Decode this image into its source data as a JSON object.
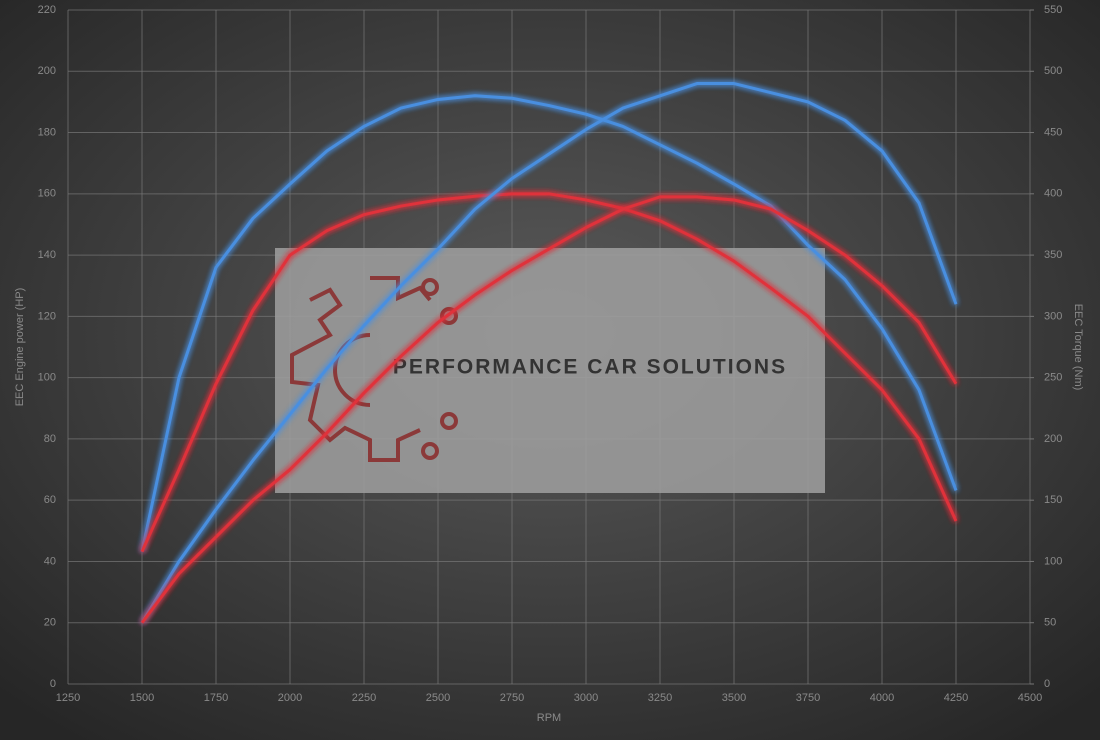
{
  "chart_data": {
    "type": "line",
    "watermark": "PERFORMANCE CAR SOLUTIONS",
    "x_label": "RPM",
    "y_label": "EEC Engine power (HP)",
    "y2_label": "EEC Torque (Nm)",
    "x": [
      1500,
      1625,
      1750,
      1875,
      2000,
      2125,
      2250,
      2375,
      2500,
      2625,
      2750,
      2875,
      3000,
      3125,
      3250,
      3375,
      3500,
      3625,
      3750,
      3875,
      4000,
      4125,
      4250
    ],
    "series": [
      {
        "color": "#4a8fe0",
        "axis": "y2",
        "values": [
          108,
          250,
          340,
          380,
          408,
          435,
          455,
          470,
          477,
          480,
          478,
          472,
          465,
          455,
          440,
          425,
          408,
          390,
          358,
          330,
          290,
          240,
          158
        ]
      },
      {
        "color": "#e0303a",
        "axis": "y2",
        "values": [
          108,
          175,
          245,
          305,
          350,
          370,
          383,
          390,
          395,
          398,
          400,
          400,
          395,
          388,
          378,
          363,
          345,
          323,
          300,
          270,
          240,
          200,
          133
        ]
      },
      {
        "color": "#4a8fe0",
        "values": [
          20,
          40,
          57,
          73,
          88,
          103,
          117,
          130,
          142,
          155,
          165,
          173,
          181,
          188,
          192,
          196,
          196,
          193,
          190,
          184,
          174,
          157,
          124
        ]
      },
      {
        "color": "#e0303a",
        "values": [
          20,
          36,
          48,
          60,
          70,
          82,
          95,
          107,
          118,
          127,
          135,
          142,
          149,
          155,
          159,
          159,
          158,
          155,
          148,
          140,
          130,
          118,
          98
        ]
      }
    ],
    "xlim": [
      1250,
      4500
    ],
    "xticks": [
      1250,
      1500,
      1750,
      2000,
      2250,
      2500,
      2750,
      3000,
      3250,
      3500,
      3750,
      4000,
      4250,
      4500
    ],
    "ylim": [
      0,
      220
    ],
    "yticks": [
      0,
      20,
      40,
      60,
      80,
      100,
      120,
      140,
      160,
      180,
      200,
      220
    ],
    "y2lim": [
      0,
      550
    ],
    "y2ticks": [
      0,
      50,
      100,
      150,
      200,
      250,
      300,
      350,
      400,
      450,
      500,
      550
    ],
    "grid": true
  }
}
